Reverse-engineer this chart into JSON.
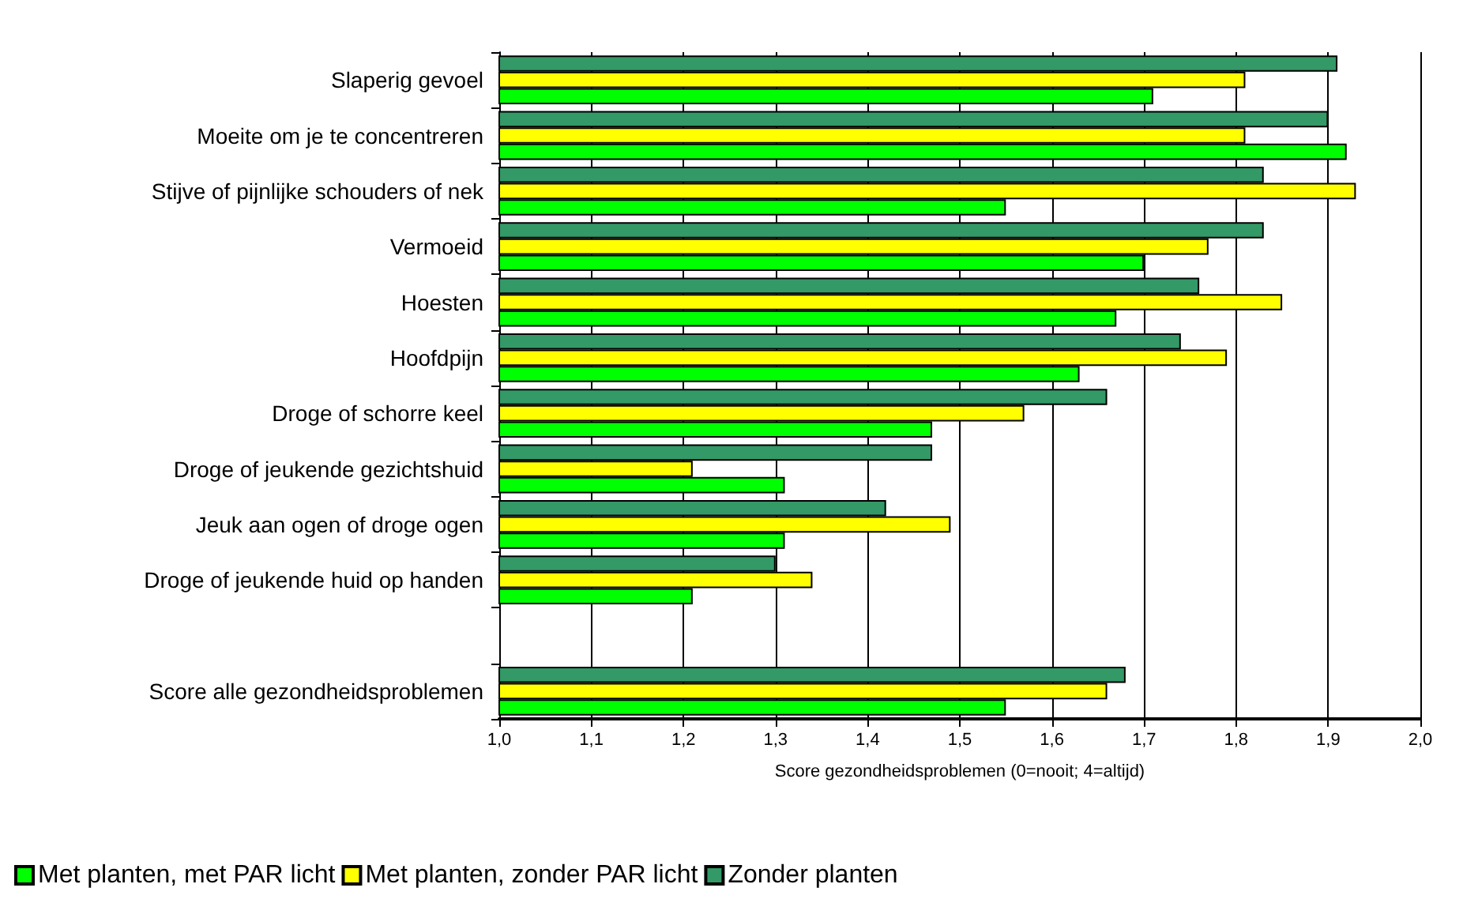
{
  "chart_data": {
    "type": "bar",
    "orientation": "horizontal",
    "xlabel": "Score gezondheidsproblemen (0=nooit; 4=altijd)",
    "categories": [
      "Slaperig gevoel",
      "Moeite om je te concentreren",
      "Stijve of pijnlijke schouders of nek",
      "Vermoeid",
      "Hoesten",
      "Hoofdpijn",
      "Droge of schorre keel",
      "Droge of jeukende gezichtshuid",
      "Jeuk aan ogen of droge ogen",
      "Droge of jeukende huid op handen",
      null,
      "Score alle gezondheidsproblemen"
    ],
    "series": [
      {
        "name": "Met planten, met PAR licht",
        "color": "#00ff00",
        "values": [
          1.71,
          1.92,
          1.55,
          1.7,
          1.67,
          1.63,
          1.47,
          1.31,
          1.31,
          1.21,
          null,
          1.55
        ]
      },
      {
        "name": "Met planten, zonder PAR licht",
        "color": "#ffff00",
        "values": [
          1.81,
          1.81,
          1.93,
          1.77,
          1.85,
          1.79,
          1.57,
          1.21,
          1.49,
          1.34,
          null,
          1.66
        ]
      },
      {
        "name": "Zonder planten",
        "color": "#339966",
        "values": [
          1.91,
          1.9,
          1.83,
          1.83,
          1.76,
          1.74,
          1.66,
          1.47,
          1.42,
          1.3,
          null,
          1.68
        ]
      }
    ],
    "xlim": [
      1.0,
      2.0
    ],
    "xticks": [
      {
        "value": 1.0,
        "label": "1,0"
      },
      {
        "value": 1.1,
        "label": "1,1"
      },
      {
        "value": 1.2,
        "label": "1,2"
      },
      {
        "value": 1.3,
        "label": "1,3"
      },
      {
        "value": 1.4,
        "label": "1,4"
      },
      {
        "value": 1.5,
        "label": "1,5"
      },
      {
        "value": 1.6,
        "label": "1,6"
      },
      {
        "value": 1.7,
        "label": "1,7"
      },
      {
        "value": 1.8,
        "label": "1,8"
      },
      {
        "value": 1.9,
        "label": "1,9"
      },
      {
        "value": 2.0,
        "label": "2,0"
      }
    ],
    "grid": "x",
    "legend": "bottom left"
  }
}
